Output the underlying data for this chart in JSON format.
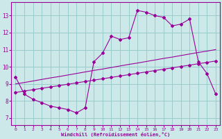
{
  "xlabel": "Windchill (Refroidissement éolien,°C)",
  "background_color": "#cce8e8",
  "grid_color": "#99cccc",
  "line_color": "#990099",
  "xlim": [
    -0.5,
    23.5
  ],
  "ylim": [
    6.6,
    13.8
  ],
  "xticks": [
    0,
    1,
    2,
    3,
    4,
    5,
    6,
    7,
    8,
    9,
    10,
    11,
    12,
    13,
    14,
    15,
    16,
    17,
    18,
    19,
    20,
    21,
    22,
    23
  ],
  "yticks": [
    7,
    8,
    9,
    10,
    11,
    12,
    13
  ],
  "line1_x": [
    0,
    1,
    2,
    3,
    4,
    5,
    6,
    7,
    8,
    9,
    10,
    11,
    12,
    13,
    14,
    15,
    16,
    17,
    18,
    19,
    20,
    21,
    22,
    23
  ],
  "line1_y": [
    9.4,
    8.4,
    8.1,
    7.9,
    7.7,
    7.6,
    7.5,
    7.3,
    7.6,
    10.3,
    10.8,
    11.8,
    11.6,
    11.7,
    13.3,
    13.2,
    13.0,
    12.9,
    12.4,
    12.5,
    12.8,
    10.3,
    9.6,
    8.4
  ],
  "line2_x": [
    0,
    1,
    2,
    3,
    4,
    5,
    6,
    7,
    8,
    9,
    10,
    11,
    12,
    13,
    14,
    15,
    16,
    17,
    18,
    19,
    20,
    21,
    22,
    23
  ],
  "line2_y": [
    8.5,
    8.58,
    8.66,
    8.74,
    8.82,
    8.9,
    8.98,
    9.06,
    9.14,
    9.22,
    9.3,
    9.38,
    9.46,
    9.54,
    9.62,
    9.7,
    9.78,
    9.86,
    9.94,
    10.02,
    10.1,
    10.18,
    10.26,
    10.34
  ],
  "line3_x": [
    0,
    1,
    2,
    3,
    4,
    5,
    6,
    7,
    8,
    9,
    10,
    11,
    12,
    13,
    14,
    15,
    16,
    17,
    18,
    19,
    20,
    21,
    22,
    23
  ],
  "line3_y": [
    9.0,
    9.08,
    9.17,
    9.26,
    9.35,
    9.43,
    9.52,
    9.61,
    9.7,
    9.79,
    9.87,
    9.96,
    10.05,
    10.14,
    10.22,
    10.31,
    10.4,
    10.49,
    10.57,
    10.66,
    10.75,
    10.84,
    10.92,
    11.01
  ],
  "figsize": [
    3.2,
    2.0
  ],
  "dpi": 100
}
